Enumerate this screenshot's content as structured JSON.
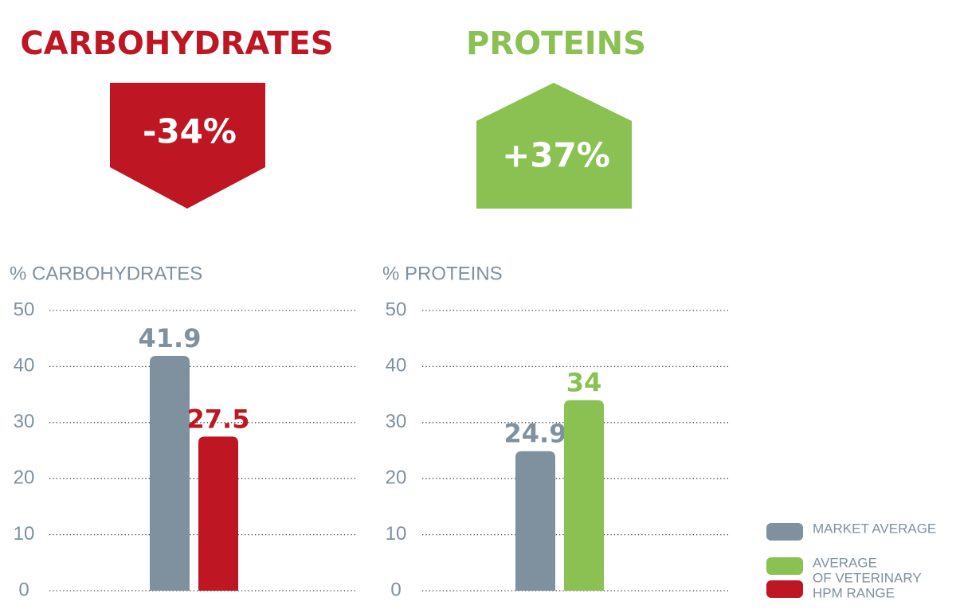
{
  "headers": [
    {
      "title": "CARBOHYDRATES",
      "badge": "-34%",
      "color": "#be1622"
    },
    {
      "title": "PROTEINS",
      "badge": "+37%",
      "color": "#8bc053"
    }
  ],
  "chart_data": [
    {
      "type": "bar",
      "title": "% CARBOHYDRATES",
      "series": [
        {
          "color": "#7f919e",
          "values": [
            41.9
          ]
        },
        {
          "color": "#be1622",
          "values": [
            27.5
          ]
        }
      ],
      "ylim": [
        0,
        50
      ],
      "yticks": [
        0,
        10,
        20,
        30,
        40,
        50
      ],
      "grid": true
    },
    {
      "type": "bar",
      "title": "% PROTEINS",
      "series": [
        {
          "color": "#7f919e",
          "values": [
            24.9
          ]
        },
        {
          "color": "#8bc053",
          "values": [
            34
          ]
        }
      ],
      "ylim": [
        0,
        50
      ],
      "yticks": [
        0,
        10,
        20,
        30,
        40,
        50
      ],
      "grid": true
    }
  ],
  "legend": {
    "items": [
      {
        "color": "#7f919e",
        "label": [
          "MARKET AVERAGE"
        ]
      },
      {
        "color": "#8bc053",
        "label": [
          "AVERAGE",
          "OF VETERINARY",
          "HPM RANGE"
        ]
      },
      {
        "color": "#be1622"
      }
    ]
  }
}
